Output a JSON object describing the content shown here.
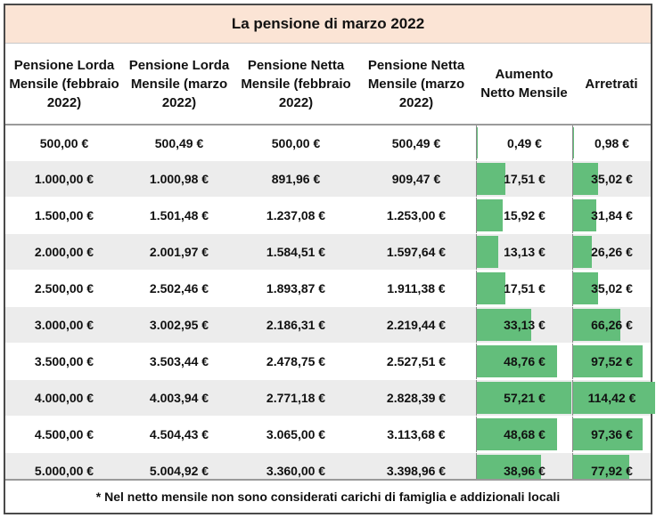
{
  "title": "La pensione di marzo 2022",
  "headers": [
    "Pensione Lorda Mensile (febbraio 2022)",
    "Pensione Lorda Mensile (marzo 2022)",
    "Pensione Netta Mensile (febbraio 2022)",
    "Pensione Netta Mensile (marzo 2022)",
    "Aumento Netto Mensile",
    "Arretrati"
  ],
  "rows": [
    {
      "lorda_feb": "500,00 €",
      "lorda_mar": "500,49 €",
      "netta_feb": "500,00 €",
      "netta_mar": "500,49 €",
      "aumento": "0,49 €",
      "arretrati": "0,98 €",
      "aumento_value": 0.49,
      "arretrati_value": 0.98
    },
    {
      "lorda_feb": "1.000,00 €",
      "lorda_mar": "1.000,98 €",
      "netta_feb": "891,96 €",
      "netta_mar": "909,47 €",
      "aumento": "17,51 €",
      "arretrati": "35,02 €",
      "aumento_value": 17.51,
      "arretrati_value": 35.02
    },
    {
      "lorda_feb": "1.500,00 €",
      "lorda_mar": "1.501,48 €",
      "netta_feb": "1.237,08 €",
      "netta_mar": "1.253,00 €",
      "aumento": "15,92 €",
      "arretrati": "31,84 €",
      "aumento_value": 15.92,
      "arretrati_value": 31.84
    },
    {
      "lorda_feb": "2.000,00 €",
      "lorda_mar": "2.001,97 €",
      "netta_feb": "1.584,51 €",
      "netta_mar": "1.597,64 €",
      "aumento": "13,13 €",
      "arretrati": "26,26 €",
      "aumento_value": 13.13,
      "arretrati_value": 26.26
    },
    {
      "lorda_feb": "2.500,00 €",
      "lorda_mar": "2.502,46 €",
      "netta_feb": "1.893,87 €",
      "netta_mar": "1.911,38 €",
      "aumento": "17,51 €",
      "arretrati": "35,02 €",
      "aumento_value": 17.51,
      "arretrati_value": 35.02
    },
    {
      "lorda_feb": "3.000,00 €",
      "lorda_mar": "3.002,95 €",
      "netta_feb": "2.186,31 €",
      "netta_mar": "2.219,44 €",
      "aumento": "33,13 €",
      "arretrati": "66,26 €",
      "aumento_value": 33.13,
      "arretrati_value": 66.26
    },
    {
      "lorda_feb": "3.500,00 €",
      "lorda_mar": "3.503,44 €",
      "netta_feb": "2.478,75 €",
      "netta_mar": "2.527,51 €",
      "aumento": "48,76 €",
      "arretrati": "97,52 €",
      "aumento_value": 48.76,
      "arretrati_value": 97.52
    },
    {
      "lorda_feb": "4.000,00 €",
      "lorda_mar": "4.003,94 €",
      "netta_feb": "2.771,18 €",
      "netta_mar": "2.828,39 €",
      "aumento": "57,21 €",
      "arretrati": "114,42 €",
      "aumento_value": 57.21,
      "arretrati_value": 114.42
    },
    {
      "lorda_feb": "4.500,00 €",
      "lorda_mar": "4.504,43 €",
      "netta_feb": "3.065,00 €",
      "netta_mar": "3.113,68 €",
      "aumento": "48,68 €",
      "arretrati": "97,36 €",
      "aumento_value": 48.68,
      "arretrati_value": 97.36
    },
    {
      "lorda_feb": "5.000,00 €",
      "lorda_mar": "5.004,92 €",
      "netta_feb": "3.360,00 €",
      "netta_mar": "3.398,96 €",
      "aumento": "38,96 €",
      "arretrati": "77,92 €",
      "aumento_value": 38.96,
      "arretrati_value": 77.92
    }
  ],
  "footnote": "* Nel netto mensile non sono considerati carichi di famiglia e addizionali locali",
  "colors": {
    "databar": "#63be7b",
    "title_bg": "#fbe4d5",
    "row_alt": "#ececec"
  }
}
